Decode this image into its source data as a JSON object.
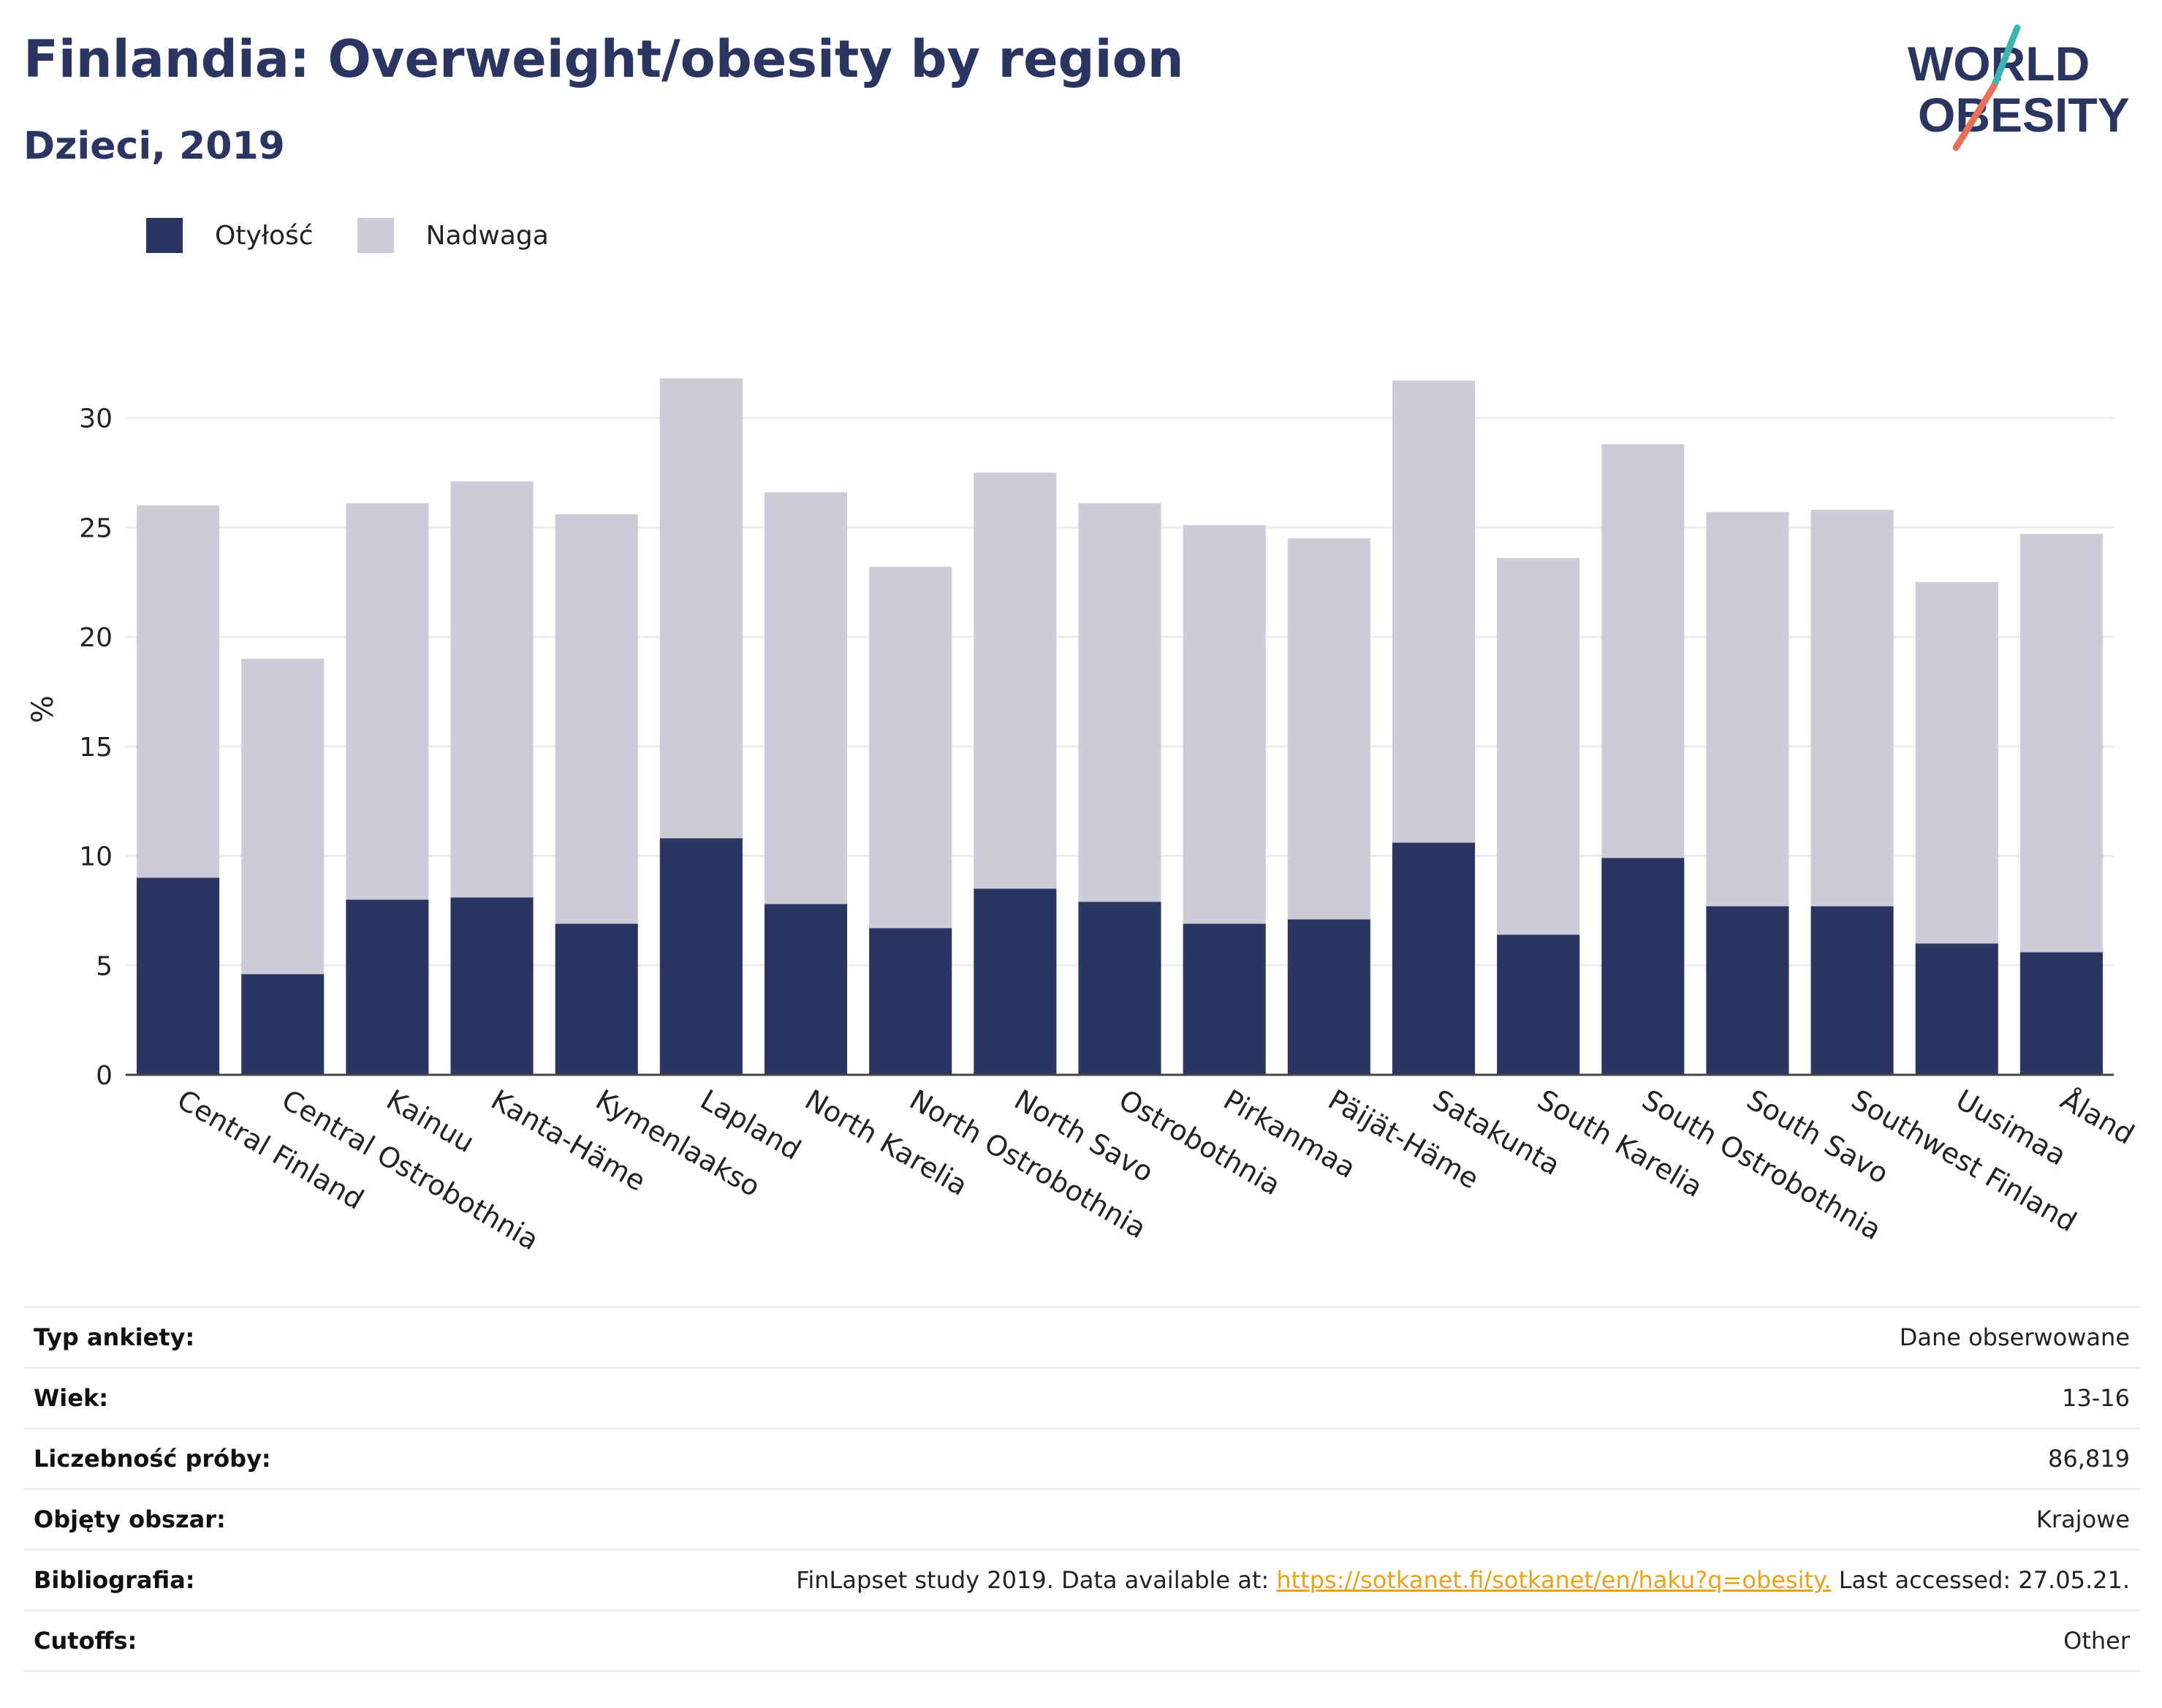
{
  "header": {
    "title": "Finlandia: Overweight/obesity by region",
    "subtitle": "Dzieci, 2019",
    "logo_line1": "WORLD",
    "logo_line2": "OBESITY"
  },
  "colors": {
    "obesity": "#2b3561",
    "overweight": "#cbccd8",
    "accent_teal": "#3ab8b0",
    "accent_coral": "#e8705a",
    "link": "#e8a317"
  },
  "legend": [
    {
      "label": "Otyłość",
      "color": "#2b3561"
    },
    {
      "label": "Nadwaga",
      "color": "#cbccd8"
    }
  ],
  "chart_data": {
    "type": "bar",
    "stacked": true,
    "ylabel": "%",
    "ylim": [
      0,
      33
    ],
    "yticks": [
      0,
      5,
      10,
      15,
      20,
      25,
      30
    ],
    "grid": true,
    "legend_position": "top-left",
    "categories": [
      "Central Finland",
      "Central Ostrobothnia",
      "Kainuu",
      "Kanta-Häme",
      "Kymenlaakso",
      "Lapland",
      "North Karelia",
      "North Ostrobothnia",
      "North Savo",
      "Ostrobothnia",
      "Pirkanmaa",
      "Päijät-Häme",
      "Satakunta",
      "South Karelia",
      "South Ostrobothnia",
      "South Savo",
      "Southwest Finland",
      "Uusimaa",
      "Åland"
    ],
    "series": [
      {
        "name": "Otyłość",
        "values": [
          9.0,
          4.6,
          8.0,
          8.1,
          6.9,
          10.8,
          7.8,
          6.7,
          8.5,
          7.9,
          6.9,
          7.1,
          10.6,
          6.4,
          9.9,
          7.7,
          7.7,
          6.0,
          5.6
        ]
      },
      {
        "name": "Nadwaga",
        "values": [
          17.0,
          14.4,
          18.1,
          19.0,
          18.7,
          21.0,
          18.8,
          16.5,
          19.0,
          18.2,
          18.2,
          17.4,
          21.1,
          17.2,
          18.9,
          18.0,
          18.1,
          16.5,
          19.1
        ]
      }
    ]
  },
  "info": [
    {
      "label": "Typ ankiety:",
      "value": "Dane obserwowane"
    },
    {
      "label": "Wiek:",
      "value": "13-16"
    },
    {
      "label": "Liczebność próby:",
      "value": "86,819"
    },
    {
      "label": "Objęty obszar:",
      "value": "Krajowe"
    },
    {
      "label": "Bibliografia:",
      "value_prefix": "FinLapset study 2019. Data available at: ",
      "link": "https://sotkanet.fi/sotkanet/en/haku?q=obesity.",
      "value_suffix": " Last accessed: 27.05.21."
    },
    {
      "label": "Cutoffs:",
      "value": "Other"
    }
  ]
}
